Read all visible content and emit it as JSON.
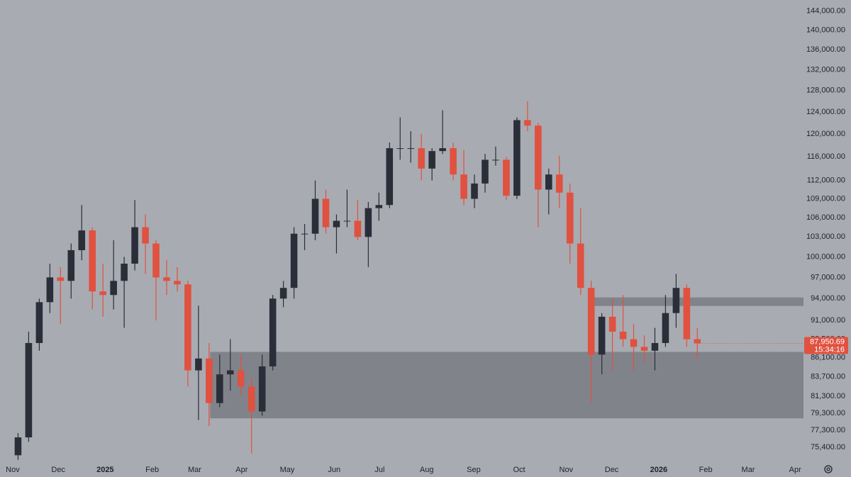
{
  "chart_data": {
    "type": "candlestick",
    "log_scale": true,
    "up_color": "#2a2e39",
    "down_color": "#e0513f",
    "zone_color": "#74767d",
    "xlim": [
      -1.2,
      74.5
    ],
    "xticks": [
      {
        "value": 0,
        "label": "Nov"
      },
      {
        "value": 4.29,
        "label": "Dec"
      },
      {
        "value": 8.71,
        "label": "2025"
      },
      {
        "value": 13.14,
        "label": "Feb"
      },
      {
        "value": 17.14,
        "label": "Mar"
      },
      {
        "value": 21.57,
        "label": "Apr"
      },
      {
        "value": 25.86,
        "label": "May"
      },
      {
        "value": 30.29,
        "label": "Jun"
      },
      {
        "value": 34.57,
        "label": "Jul"
      },
      {
        "value": 39,
        "label": "Aug"
      },
      {
        "value": 43.43,
        "label": "Sep"
      },
      {
        "value": 47.71,
        "label": "Oct"
      },
      {
        "value": 52.14,
        "label": "Nov"
      },
      {
        "value": 56.43,
        "label": "Dec"
      },
      {
        "value": 60.86,
        "label": "2026"
      },
      {
        "value": 65.29,
        "label": "Feb"
      },
      {
        "value": 69.29,
        "label": "Mar"
      },
      {
        "value": 73.71,
        "label": "Apr"
      }
    ],
    "ylim": [
      73900,
      146400
    ],
    "yticks": [
      {
        "value": 144000,
        "label": "144,000.00"
      },
      {
        "value": 140000,
        "label": "140,000.00"
      },
      {
        "value": 136000,
        "label": "136,000.00"
      },
      {
        "value": 132000,
        "label": "132,000.00"
      },
      {
        "value": 128000,
        "label": "128,000.00"
      },
      {
        "value": 124000,
        "label": "124,000.00"
      },
      {
        "value": 120000,
        "label": "120,000.00"
      },
      {
        "value": 116000,
        "label": "116,000.00"
      },
      {
        "value": 112000,
        "label": "112,000.00"
      },
      {
        "value": 109000,
        "label": "109,000.00"
      },
      {
        "value": 106000,
        "label": "106,000.00"
      },
      {
        "value": 103000,
        "label": "103,000.00"
      },
      {
        "value": 100000,
        "label": "100,000.00"
      },
      {
        "value": 97000,
        "label": "97,000.00"
      },
      {
        "value": 94000,
        "label": "94,000.00"
      },
      {
        "value": 91000,
        "label": "91,000.00"
      },
      {
        "value": 88500,
        "label": "88,500.00"
      },
      {
        "value": 86100,
        "label": "86,100.00"
      },
      {
        "value": 83700,
        "label": "83,700.00"
      },
      {
        "value": 81300,
        "label": "81,300.00"
      },
      {
        "value": 79300,
        "label": "79,300.00"
      },
      {
        "value": 77300,
        "label": "77,300.00"
      },
      {
        "value": 75400,
        "label": "75,400.00"
      }
    ],
    "open": [
      74500,
      76500,
      88000,
      93500,
      97000,
      96500,
      101000,
      104000,
      95000,
      94500,
      96500,
      99000,
      104500,
      102000,
      97000,
      96500,
      96000,
      84500,
      86000,
      80500,
      84000,
      84500,
      82500,
      79500,
      85000,
      94000,
      95500,
      103500,
      103500,
      109000,
      104500,
      105500,
      105500,
      103000,
      107500,
      108000,
      117500,
      117500,
      117500,
      114000,
      117000,
      117500,
      113000,
      109000,
      111500,
      115500,
      115500,
      109500,
      122500,
      121500,
      110500,
      113000,
      110000,
      102000,
      95500,
      86500,
      91500,
      89500,
      88500,
      87500,
      87000,
      88000,
      92000,
      95500,
      88500
    ],
    "high": [
      77000,
      89500,
      94000,
      99000,
      98500,
      102000,
      108000,
      104500,
      99000,
      102500,
      100000,
      108800,
      106500,
      102500,
      99500,
      98500,
      96500,
      93000,
      88000,
      86500,
      88500,
      86500,
      83500,
      86500,
      94500,
      96500,
      104500,
      105000,
      112000,
      110500,
      106500,
      110500,
      108800,
      108500,
      110000,
      118500,
      123000,
      120500,
      120000,
      117500,
      124300,
      118500,
      117200,
      113000,
      116500,
      117800,
      116000,
      123000,
      126000,
      122000,
      114000,
      116200,
      111500,
      107500,
      96500,
      92000,
      94000,
      94500,
      90500,
      89000,
      90000,
      94500,
      97500,
      96000,
      90000
    ],
    "low": [
      74000,
      76000,
      87000,
      92000,
      90500,
      94000,
      99500,
      92500,
      91500,
      92500,
      90000,
      98000,
      97500,
      91000,
      94500,
      95000,
      82500,
      78500,
      77800,
      80000,
      82000,
      81500,
      74700,
      79000,
      84500,
      92800,
      94000,
      101000,
      102500,
      103500,
      100500,
      104500,
      102500,
      98500,
      105500,
      107500,
      115500,
      115000,
      112000,
      112000,
      116500,
      112000,
      108000,
      107500,
      110000,
      114500,
      108800,
      109000,
      120500,
      104500,
      106500,
      107500,
      99000,
      94500,
      80600,
      84000,
      84500,
      87500,
      84500,
      85500,
      84500,
      87500,
      90000,
      87500,
      86000
    ],
    "close": [
      76500,
      88000,
      93500,
      97000,
      96500,
      101000,
      104000,
      95000,
      94500,
      96500,
      99000,
      104500,
      102000,
      97000,
      96500,
      96000,
      84500,
      86000,
      80500,
      84000,
      84500,
      82500,
      79500,
      85000,
      94000,
      95500,
      103500,
      103500,
      109000,
      104500,
      105500,
      105500,
      103000,
      107500,
      108000,
      117500,
      117500,
      117500,
      114000,
      117000,
      117500,
      113000,
      109000,
      111500,
      115500,
      115500,
      109500,
      122500,
      121500,
      110500,
      113000,
      110000,
      102000,
      95500,
      86500,
      91500,
      89500,
      88500,
      87500,
      87000,
      88000,
      92000,
      95500,
      88500,
      87950.69
    ],
    "zones": [
      {
        "x": [
          18.6,
          74.5
        ],
        "y": [
          78700,
          86850
        ]
      },
      {
        "x": [
          54.5,
          74.5
        ],
        "y": [
          92980,
          94160
        ]
      }
    ],
    "last_price": {
      "value": 87950.69,
      "label": "87,950.69"
    },
    "countdown": "15:34:16"
  }
}
